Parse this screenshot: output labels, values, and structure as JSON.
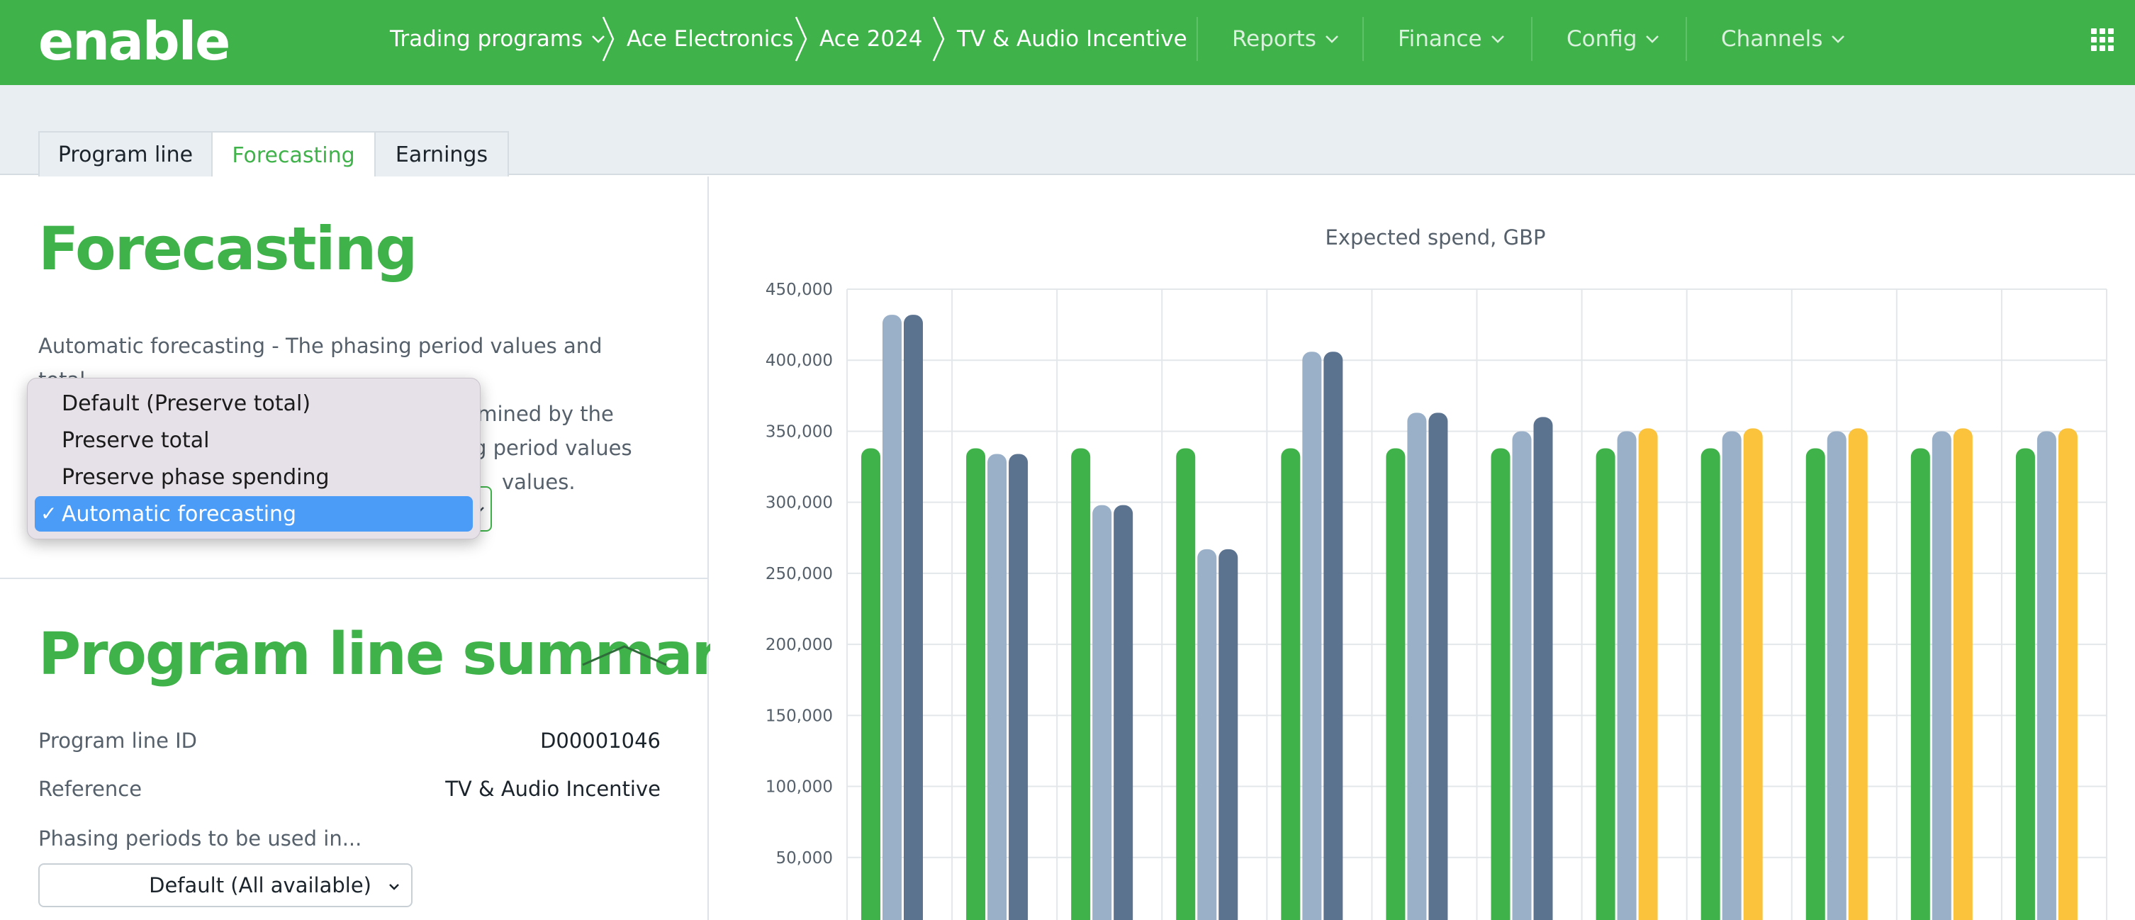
{
  "brand": {
    "logo_left": "en",
    "logo_right": "able",
    "color": "#3fb24a"
  },
  "topnav": {
    "breadcrumb": [
      {
        "label": "Trading programs",
        "dropdown": true
      },
      {
        "label": "Ace Electronics"
      },
      {
        "label": "Ace 2024"
      },
      {
        "label": "TV & Audio Incentive"
      }
    ],
    "menus": [
      {
        "label": "Reports"
      },
      {
        "label": "Finance"
      },
      {
        "label": "Config"
      },
      {
        "label": "Channels"
      }
    ],
    "apps_icon": "grid-icon"
  },
  "tabs": [
    {
      "label": "Program line",
      "active": false
    },
    {
      "label": "Forecasting",
      "active": true
    },
    {
      "label": "Earnings",
      "active": false
    }
  ],
  "forecasting": {
    "heading": "Forecasting",
    "description_lines": [
      "Automatic forecasting - The phasing period values and total",
      "spend value for the program line are determined by the",
      "g period values",
      "values."
    ],
    "mode_options": [
      {
        "label": "Default (Preserve total)",
        "selected": false
      },
      {
        "label": "Preserve total",
        "selected": false
      },
      {
        "label": "Preserve phase spending",
        "selected": false
      },
      {
        "label": "Automatic forecasting",
        "selected": true
      }
    ],
    "check_mark": "✓"
  },
  "summary": {
    "heading": "Program line summary",
    "program_line_id_label": "Program line ID",
    "program_line_id": "D00001046",
    "reference_label": "Reference",
    "reference": "TV & Audio Incentive",
    "phasing_label": "Phasing periods to be used in...",
    "phasing_value": "Default (All available)"
  },
  "chart_data": {
    "type": "bar",
    "title": "Expected spend, GBP",
    "ylim": [
      0,
      450000
    ],
    "yticks": [
      "50,000",
      "100,000",
      "150,000",
      "200,000",
      "250,000",
      "300,000",
      "350,000",
      "400,000",
      "450,000"
    ],
    "ytick_values": [
      50000,
      100000,
      150000,
      200000,
      250000,
      300000,
      350000,
      400000,
      450000
    ],
    "grid": true,
    "categories": [
      "",
      "",
      "",
      "",
      "",
      "",
      "",
      "",
      "",
      "",
      "",
      ""
    ],
    "series": [
      {
        "color": "#3fb24a",
        "values": [
          338000,
          338000,
          338000,
          338000,
          338000,
          338000,
          338000,
          338000,
          338000,
          338000,
          338000,
          338000
        ]
      },
      {
        "color": "#9ab0c9",
        "values": [
          432000,
          334000,
          298000,
          267000,
          406000,
          363000,
          350000,
          350000,
          350000,
          350000,
          350000,
          350000
        ]
      },
      {
        "color": "#5c7390",
        "values": [
          432000,
          334000,
          298000,
          267000,
          406000,
          363000,
          360000,
          null,
          null,
          null,
          null,
          null
        ]
      },
      {
        "color": "#fbc23c",
        "values": [
          null,
          null,
          null,
          null,
          null,
          null,
          null,
          352000,
          352000,
          352000,
          352000,
          352000
        ]
      }
    ]
  }
}
